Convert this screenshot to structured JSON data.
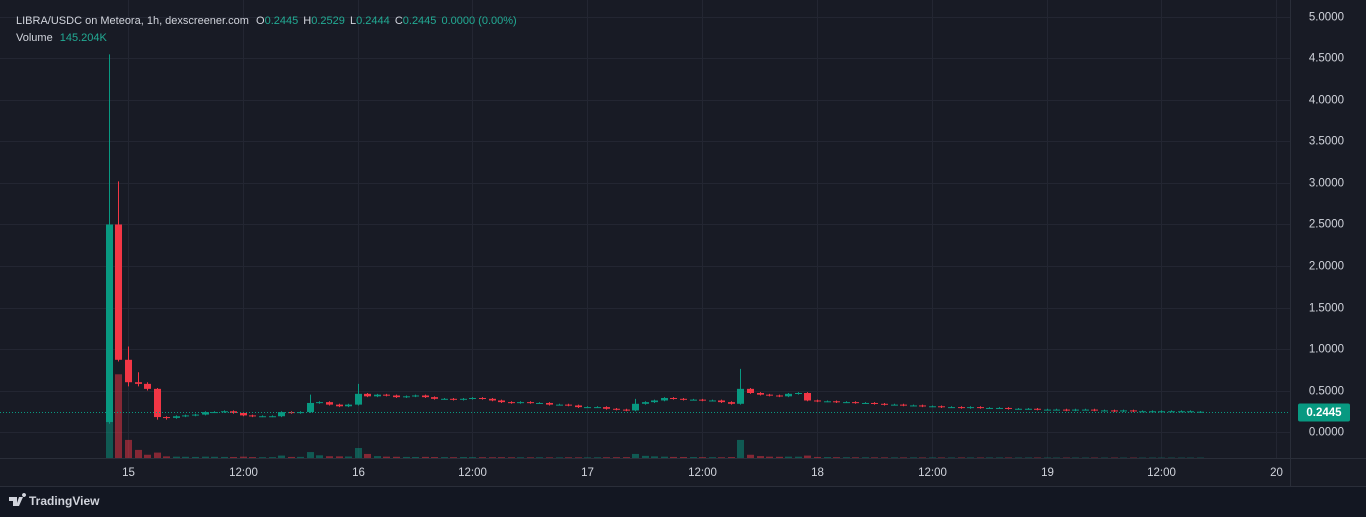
{
  "chart_data": {
    "type": "candlestick",
    "title": "LIBRA/USDC on Meteora, 1h, dexscreener.com",
    "header": {
      "items": [
        {
          "label": "O",
          "value": 0.2445
        },
        {
          "label": "H",
          "value": 0.2529
        },
        {
          "label": "L",
          "value": 0.2444
        },
        {
          "label": "C",
          "value": 0.2445
        }
      ],
      "change": "0.0000 (0.00%)",
      "volume_label": "Volume",
      "volume": {
        "value": 145204,
        "label": "145.204K"
      }
    },
    "x": [
      -2,
      -1,
      0,
      1,
      2,
      3,
      4,
      5,
      6,
      7,
      8,
      9,
      10,
      11,
      12,
      13,
      14,
      15,
      16,
      17,
      18,
      19,
      20,
      21,
      22,
      23,
      24,
      25,
      26,
      27,
      28,
      29,
      30,
      31,
      32,
      33,
      34,
      35,
      36,
      37,
      38,
      39,
      40,
      41,
      42,
      43,
      44,
      45,
      46,
      47,
      48,
      49,
      50,
      51,
      52,
      53,
      54,
      55,
      56,
      57,
      58,
      59,
      60,
      61,
      62,
      63,
      64,
      65,
      66,
      67,
      68,
      69,
      70,
      71,
      72,
      73,
      74,
      75,
      76,
      77,
      78,
      79,
      80,
      81,
      82,
      83,
      84,
      85,
      86,
      87,
      88,
      89,
      90,
      91,
      92,
      93,
      94,
      95,
      96,
      97,
      98,
      99,
      100,
      101,
      102,
      103,
      104,
      105,
      106,
      107,
      108,
      109,
      110,
      111,
      112
    ],
    "open": [
      0.12,
      2.5,
      0.87,
      0.6,
      0.58,
      0.52,
      0.18,
      0.17,
      0.19,
      0.2,
      0.21,
      0.24,
      0.24,
      0.25,
      0.23,
      0.2,
      0.19,
      0.19,
      0.19,
      0.24,
      0.23,
      0.24,
      0.35,
      0.36,
      0.33,
      0.31,
      0.33,
      0.46,
      0.43,
      0.45,
      0.44,
      0.42,
      0.43,
      0.44,
      0.42,
      0.4,
      0.4,
      0.39,
      0.4,
      0.41,
      0.4,
      0.38,
      0.36,
      0.35,
      0.36,
      0.35,
      0.35,
      0.33,
      0.33,
      0.32,
      0.3,
      0.3,
      0.3,
      0.28,
      0.27,
      0.26,
      0.34,
      0.36,
      0.38,
      0.41,
      0.4,
      0.39,
      0.39,
      0.38,
      0.38,
      0.36,
      0.34,
      0.52,
      0.47,
      0.45,
      0.44,
      0.43,
      0.46,
      0.47,
      0.38,
      0.37,
      0.37,
      0.36,
      0.36,
      0.35,
      0.35,
      0.34,
      0.33,
      0.33,
      0.32,
      0.32,
      0.31,
      0.31,
      0.3,
      0.3,
      0.29,
      0.3,
      0.29,
      0.29,
      0.29,
      0.28,
      0.28,
      0.28,
      0.27,
      0.27,
      0.27,
      0.26,
      0.27,
      0.27,
      0.26,
      0.26,
      0.25,
      0.26,
      0.25,
      0.25,
      0.25,
      0.25,
      0.25,
      0.25,
      0.2445
    ],
    "high": [
      4.55,
      3.02,
      1.03,
      0.72,
      0.6,
      0.53,
      0.19,
      0.2,
      0.21,
      0.22,
      0.25,
      0.25,
      0.26,
      0.26,
      0.24,
      0.21,
      0.2,
      0.2,
      0.25,
      0.25,
      0.25,
      0.45,
      0.37,
      0.37,
      0.34,
      0.34,
      0.58,
      0.47,
      0.46,
      0.46,
      0.45,
      0.44,
      0.45,
      0.45,
      0.43,
      0.41,
      0.41,
      0.41,
      0.42,
      0.42,
      0.41,
      0.39,
      0.37,
      0.37,
      0.37,
      0.36,
      0.36,
      0.34,
      0.34,
      0.33,
      0.31,
      0.31,
      0.31,
      0.29,
      0.28,
      0.4,
      0.37,
      0.39,
      0.42,
      0.42,
      0.41,
      0.4,
      0.4,
      0.39,
      0.39,
      0.37,
      0.76,
      0.53,
      0.48,
      0.46,
      0.45,
      0.47,
      0.48,
      0.48,
      0.39,
      0.38,
      0.38,
      0.37,
      0.37,
      0.36,
      0.36,
      0.35,
      0.34,
      0.34,
      0.33,
      0.33,
      0.32,
      0.32,
      0.31,
      0.31,
      0.31,
      0.31,
      0.3,
      0.3,
      0.3,
      0.29,
      0.29,
      0.29,
      0.28,
      0.28,
      0.28,
      0.28,
      0.28,
      0.28,
      0.27,
      0.27,
      0.27,
      0.27,
      0.26,
      0.26,
      0.26,
      0.26,
      0.26,
      0.26,
      0.2529
    ],
    "low": [
      0.1,
      0.85,
      0.55,
      0.55,
      0.5,
      0.15,
      0.15,
      0.16,
      0.18,
      0.19,
      0.2,
      0.23,
      0.23,
      0.22,
      0.19,
      0.18,
      0.18,
      0.18,
      0.18,
      0.22,
      0.22,
      0.23,
      0.34,
      0.32,
      0.3,
      0.3,
      0.32,
      0.42,
      0.42,
      0.43,
      0.41,
      0.41,
      0.42,
      0.41,
      0.39,
      0.39,
      0.38,
      0.38,
      0.39,
      0.39,
      0.37,
      0.35,
      0.34,
      0.34,
      0.34,
      0.34,
      0.32,
      0.32,
      0.31,
      0.29,
      0.29,
      0.29,
      0.27,
      0.26,
      0.25,
      0.25,
      0.33,
      0.35,
      0.37,
      0.39,
      0.38,
      0.38,
      0.37,
      0.37,
      0.35,
      0.33,
      0.33,
      0.46,
      0.44,
      0.43,
      0.42,
      0.42,
      0.45,
      0.37,
      0.36,
      0.36,
      0.35,
      0.35,
      0.34,
      0.34,
      0.33,
      0.32,
      0.32,
      0.31,
      0.31,
      0.3,
      0.3,
      0.29,
      0.29,
      0.28,
      0.28,
      0.28,
      0.28,
      0.28,
      0.27,
      0.27,
      0.27,
      0.26,
      0.26,
      0.26,
      0.25,
      0.25,
      0.26,
      0.25,
      0.25,
      0.24,
      0.24,
      0.24,
      0.24,
      0.24,
      0.24,
      0.24,
      0.24,
      0.24,
      0.2444
    ],
    "close": [
      2.5,
      0.87,
      0.6,
      0.58,
      0.52,
      0.18,
      0.17,
      0.19,
      0.2,
      0.21,
      0.24,
      0.24,
      0.25,
      0.23,
      0.2,
      0.19,
      0.19,
      0.19,
      0.24,
      0.23,
      0.24,
      0.35,
      0.36,
      0.33,
      0.31,
      0.33,
      0.46,
      0.43,
      0.45,
      0.44,
      0.42,
      0.43,
      0.44,
      0.42,
      0.4,
      0.4,
      0.39,
      0.4,
      0.41,
      0.4,
      0.38,
      0.36,
      0.35,
      0.36,
      0.35,
      0.35,
      0.33,
      0.33,
      0.32,
      0.3,
      0.3,
      0.3,
      0.28,
      0.27,
      0.26,
      0.34,
      0.36,
      0.38,
      0.41,
      0.4,
      0.39,
      0.39,
      0.38,
      0.38,
      0.36,
      0.34,
      0.52,
      0.47,
      0.45,
      0.44,
      0.43,
      0.46,
      0.47,
      0.38,
      0.37,
      0.37,
      0.36,
      0.36,
      0.35,
      0.35,
      0.34,
      0.33,
      0.33,
      0.32,
      0.32,
      0.31,
      0.31,
      0.3,
      0.3,
      0.29,
      0.3,
      0.29,
      0.29,
      0.29,
      0.28,
      0.28,
      0.28,
      0.27,
      0.27,
      0.27,
      0.26,
      0.27,
      0.27,
      0.26,
      0.26,
      0.25,
      0.26,
      0.25,
      0.25,
      0.25,
      0.25,
      0.25,
      0.25,
      0.25,
      0.2445
    ],
    "volume": [
      42000000,
      31000000,
      6700000,
      3000000,
      1200000,
      2000000,
      600000,
      500000,
      450000,
      400000,
      500000,
      450000,
      400000,
      380000,
      500000,
      350000,
      300000,
      320000,
      900000,
      400000,
      420000,
      2200000,
      1000000,
      650000,
      600000,
      550000,
      3700000,
      1500000,
      700000,
      500000,
      450000,
      400000,
      380000,
      420000,
      350000,
      330000,
      300000,
      350000,
      320000,
      300000,
      280000,
      300000,
      260000,
      250000,
      240000,
      260000,
      230000,
      220000,
      250000,
      240000,
      230000,
      260000,
      280000,
      300000,
      320000,
      1500000,
      800000,
      600000,
      500000,
      400000,
      380000,
      350000,
      320000,
      300000,
      280000,
      350000,
      6700000,
      1200000,
      700000,
      500000,
      450000,
      500000,
      480000,
      900000,
      400000,
      350000,
      300000,
      280000,
      260000,
      250000,
      240000,
      230000,
      220000,
      210000,
      220000,
      200000,
      210000,
      200000,
      190000,
      200000,
      190000,
      180000,
      200000,
      190000,
      180000,
      170000,
      180000,
      175000,
      170000,
      165000,
      160000,
      170000,
      165000,
      160000,
      155000,
      160000,
      150000,
      155000,
      150000,
      160000,
      150000,
      155000,
      150000,
      148000,
      145204
    ],
    "up_color": "#089981",
    "down_color": "#f23645",
    "xlim": [
      -12.54,
      121.43
    ],
    "xticks": [
      {
        "value": 0,
        "label": "15"
      },
      {
        "value": 12,
        "label": "12:00"
      },
      {
        "value": 24,
        "label": "16"
      },
      {
        "value": 36,
        "label": "12:00"
      },
      {
        "value": 48,
        "label": "17"
      },
      {
        "value": 60,
        "label": "12:00"
      },
      {
        "value": 72,
        "label": "18"
      },
      {
        "value": 84,
        "label": "12:00"
      },
      {
        "value": 96,
        "label": "19"
      },
      {
        "value": 108,
        "label": "12:00"
      },
      {
        "value": 120,
        "label": "20"
      }
    ],
    "ylim": [
      -0.313,
      5.108
    ],
    "yticks": [
      {
        "value": 0,
        "label": "0.0000"
      },
      {
        "value": 0.5,
        "label": "0.5000"
      },
      {
        "value": 1,
        "label": "1.0000"
      },
      {
        "value": 1.5,
        "label": "1.5000"
      },
      {
        "value": 2,
        "label": "2.0000"
      },
      {
        "value": 2.5,
        "label": "2.5000"
      },
      {
        "value": 3,
        "label": "3.0000"
      },
      {
        "value": 3.5,
        "label": "3.5000"
      },
      {
        "value": 4,
        "label": "4.0000"
      },
      {
        "value": 4.5,
        "label": "4.5000"
      },
      {
        "value": 5,
        "label": "5.0000"
      }
    ],
    "volume_lim": [
      0,
      50000000
    ],
    "last_price": {
      "value": 0.2445,
      "label": "0.2445"
    },
    "grid": true
  },
  "footer": {
    "brand": "TradingView"
  }
}
